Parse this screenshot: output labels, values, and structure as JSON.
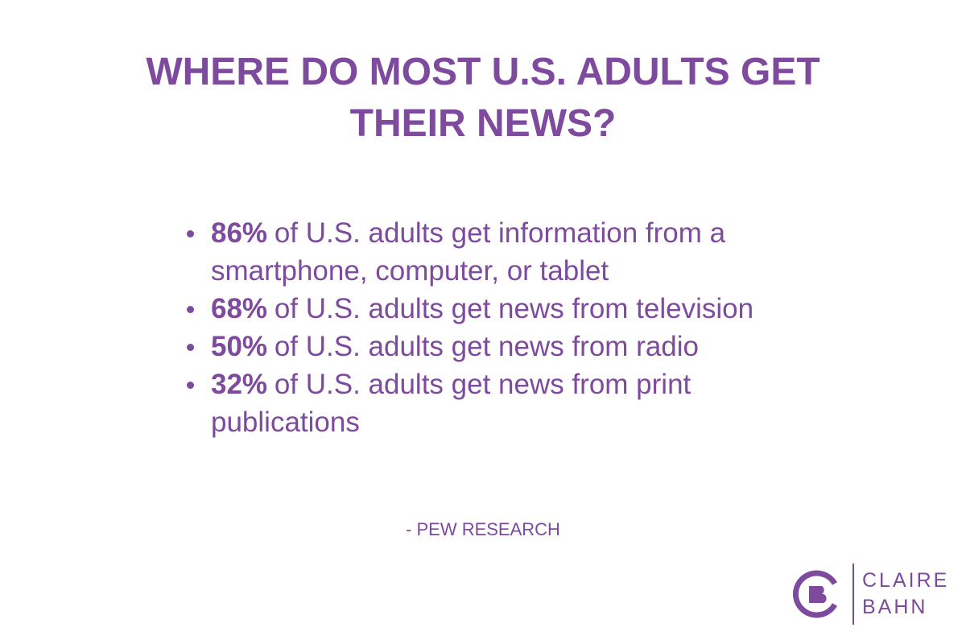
{
  "title": "WHERE DO MOST U.S. ADULTS GET THEIR NEWS?",
  "items": [
    {
      "stat": "86%",
      "text": "of U.S. adults get information from a smartphone, computer, or tablet"
    },
    {
      "stat": "68%",
      "text": "of U.S. adults get news from television"
    },
    {
      "stat": "50%",
      "text": "of U.S. adults get news from radio"
    },
    {
      "stat": "32%",
      "text": "of U.S. adults get news from print publications"
    }
  ],
  "source": "- PEW RESEARCH",
  "logo": {
    "line1": "CLAIRE",
    "line2": "BAHN"
  }
}
